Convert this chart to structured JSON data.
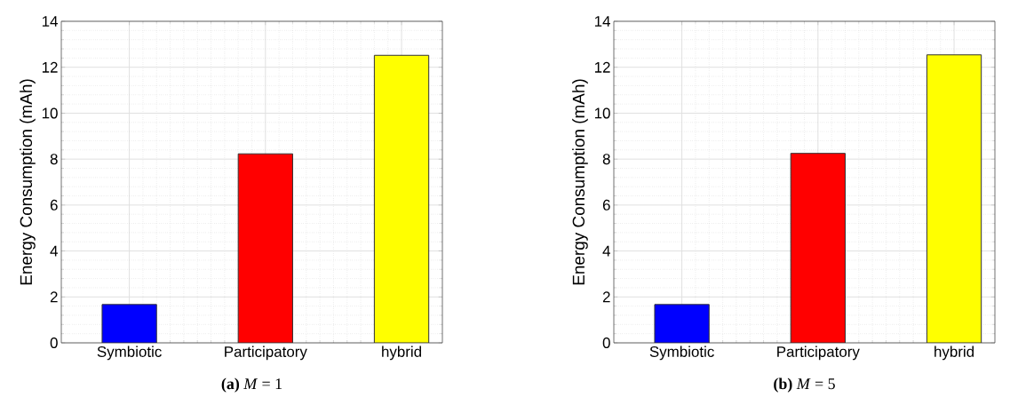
{
  "chart_data": [
    {
      "type": "bar",
      "title": "**(a)** *M* = 1",
      "ylabel": "Energy Consumption (mAh)",
      "categories": [
        "Symbiotic",
        "Participatory",
        "hybrid"
      ],
      "values": [
        1.67,
        8.23,
        12.52
      ],
      "colors": [
        "#0000ff",
        "#ff0000",
        "#ffff00"
      ],
      "ylim": [
        0,
        14
      ],
      "yticks": [
        0,
        2,
        4,
        6,
        8,
        10,
        12,
        14
      ],
      "grid": true
    },
    {
      "type": "bar",
      "title": "**(b)** *M* = 5",
      "ylabel": "Energy Consumption (mAh)",
      "categories": [
        "Symbiotic",
        "Participatory",
        "hybrid"
      ],
      "values": [
        1.67,
        8.25,
        12.54
      ],
      "colors": [
        "#0000ff",
        "#ff0000",
        "#ffff00"
      ],
      "ylim": [
        0,
        14
      ],
      "yticks": [
        0,
        2,
        4,
        6,
        8,
        10,
        12,
        14
      ],
      "grid": true
    }
  ]
}
